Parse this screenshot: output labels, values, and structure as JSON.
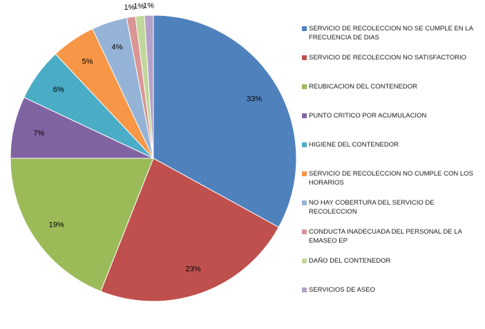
{
  "chart_data": {
    "type": "pie",
    "title": "",
    "slices": [
      {
        "label": "SERVICIO DE RECOLECCION NO SE CUMPLE EN LA FRECUENCIA DE DIAS",
        "value": 33,
        "data_label": "33%",
        "color": "#4F81BD"
      },
      {
        "label": "SERVICIO DE RECOLECCION NO SATISFACTORIO",
        "value": 23,
        "data_label": "23%",
        "color": "#C0504D"
      },
      {
        "label": "REUBICACION DEL CONTENEDOR",
        "value": 19,
        "data_label": "19%",
        "color": "#9BBB59"
      },
      {
        "label": "PUNTO CRITICO POR ACUMULACION",
        "value": 7,
        "data_label": "7%",
        "color": "#8064A2"
      },
      {
        "label": "HIGIENE DEL CONTENEDOR",
        "value": 6,
        "data_label": "6%",
        "color": "#4BACC6"
      },
      {
        "label": "SERVICIO DE RECOLECCION NO CUMPLE CON LOS HORARIOS",
        "value": 5,
        "data_label": "5%",
        "color": "#F79646"
      },
      {
        "label": "NO HAY COBERTURA DEL SERVICIO DE RECOLECCION",
        "value": 4,
        "data_label": "4%",
        "color": "#95B3D7"
      },
      {
        "label": "CONDUCTA INADECUADA DEL PERSONAL DE LA EMASEO EP",
        "value": 1,
        "data_label": "1%",
        "color": "#D99694"
      },
      {
        "label": "DAÑO DEL CONTENEDOR",
        "value": 1,
        "data_label": "1%",
        "color": "#C3D69B"
      },
      {
        "label": "SERVICIOS DE ASEO",
        "value": 1,
        "data_label": "1%",
        "color": "#B2A2C7"
      }
    ],
    "legend_position": "right",
    "start_angle": "top, clockwise"
  }
}
